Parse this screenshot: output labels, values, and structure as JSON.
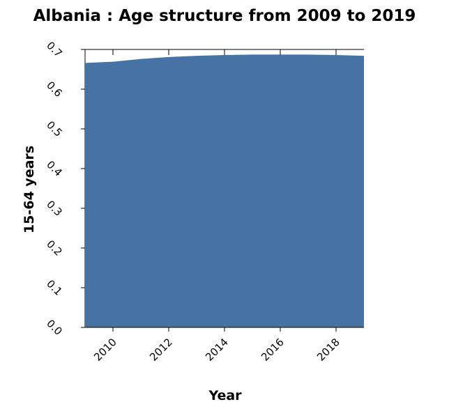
{
  "chart_data": {
    "type": "area",
    "title": "Albania : Age structure from 2009 to 2019",
    "xlabel": "Year",
    "ylabel": "15-64 years",
    "x": [
      2009,
      2010,
      2011,
      2012,
      2013,
      2014,
      2015,
      2016,
      2017,
      2018,
      2019
    ],
    "series": [
      {
        "values": [
          0.666,
          0.669,
          0.676,
          0.681,
          0.684,
          0.686,
          0.687,
          0.687,
          0.687,
          0.686,
          0.684
        ]
      }
    ],
    "xlim": [
      2009,
      2019
    ],
    "ylim": [
      0,
      0.7
    ],
    "xticks": [
      2010,
      2012,
      2014,
      2016,
      2018
    ],
    "yticks": [
      "0.0",
      "0.1",
      "0.2",
      "0.3",
      "0.4",
      "0.5",
      "0.6",
      "0.7"
    ],
    "grid": false,
    "colors": {
      "area": "#4673a4",
      "axis": "#000000"
    }
  }
}
